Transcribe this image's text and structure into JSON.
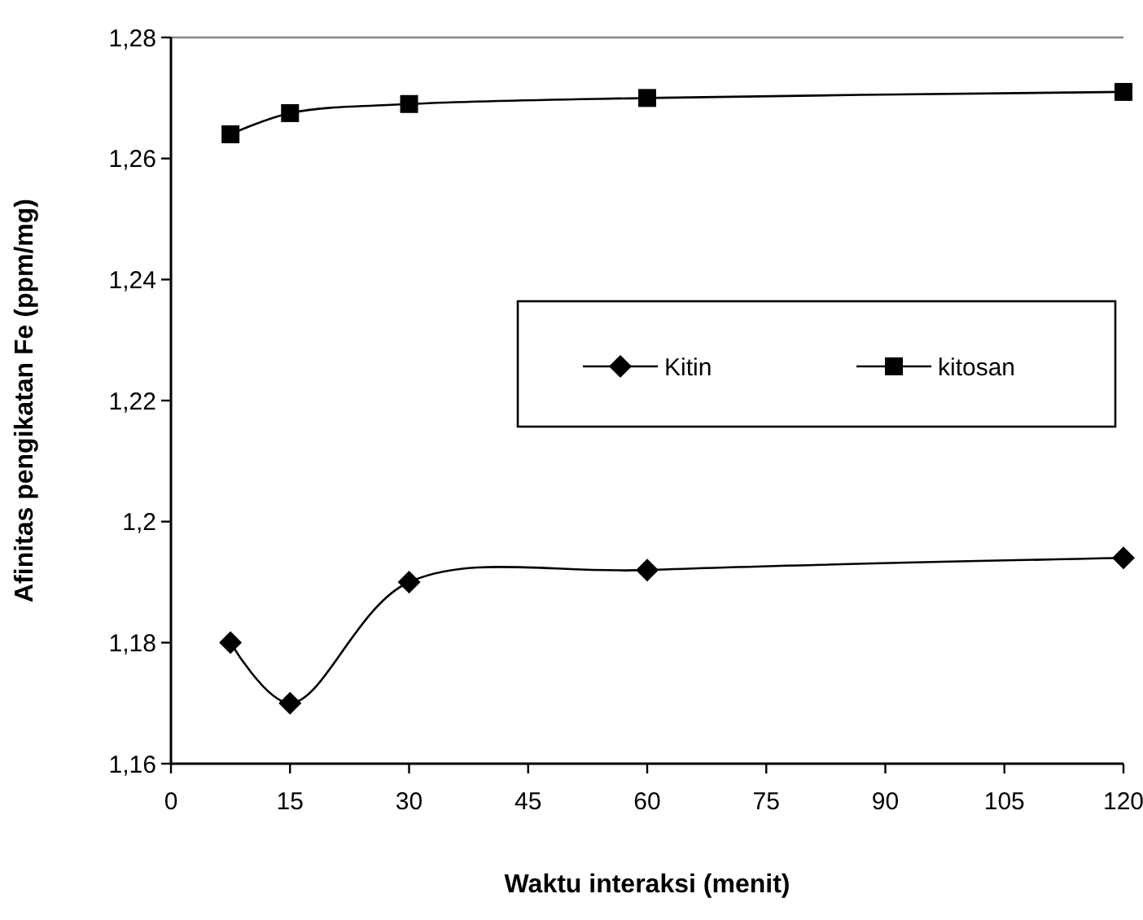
{
  "chart_data": {
    "type": "line",
    "xlabel": "Waktu interaksi (menit)",
    "ylabel": "Afinitas pengikatan Fe (ppm/mg)",
    "x": [
      7.5,
      15,
      30,
      60,
      120
    ],
    "series": [
      {
        "name": "Kitin",
        "color": "#000000",
        "marker": "diamond",
        "values": [
          1.18,
          1.17,
          1.19,
          1.192,
          1.194
        ]
      },
      {
        "name": "kitosan",
        "color": "#000000",
        "marker": "square",
        "values": [
          1.264,
          1.2675,
          1.269,
          1.27,
          1.271
        ]
      }
    ],
    "xlim": [
      0,
      120
    ],
    "xticks": [
      0,
      15,
      30,
      45,
      60,
      75,
      90,
      105,
      120
    ],
    "ylim": [
      1.16,
      1.28
    ],
    "yticks": [
      {
        "value": 1.16,
        "label": "1,16"
      },
      {
        "value": 1.18,
        "label": "1,18"
      },
      {
        "value": 1.2,
        "label": "1,2"
      },
      {
        "value": 1.22,
        "label": "1,22"
      },
      {
        "value": 1.24,
        "label": "1,24"
      },
      {
        "value": 1.26,
        "label": "1,26"
      },
      {
        "value": 1.28,
        "label": "1,28"
      }
    ],
    "grid": false,
    "legend": "right",
    "line_style": "solid"
  }
}
